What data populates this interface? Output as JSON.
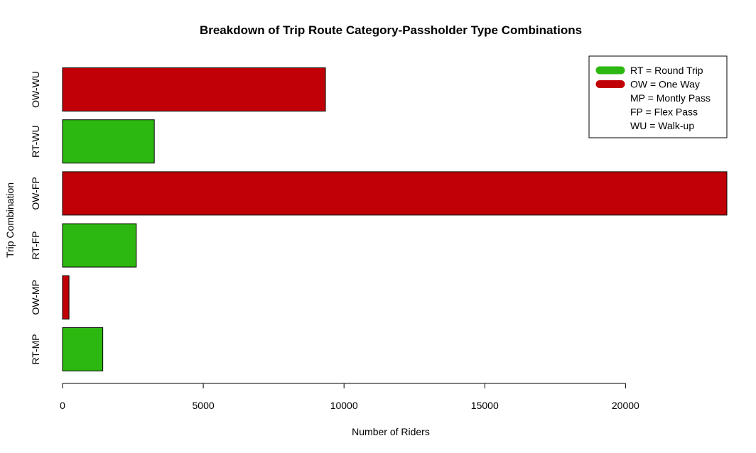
{
  "chart_data": {
    "type": "bar",
    "orientation": "horizontal",
    "title": "Breakdown of Trip Route Category-Passholder Type Combinations",
    "xlabel": "Number of Riders",
    "ylabel": "Trip Combination",
    "categories": [
      "RT-MP",
      "OW-MP",
      "RT-FP",
      "OW-FP",
      "RT-WU",
      "OW-WU"
    ],
    "values": [
      1430,
      230,
      2620,
      23600,
      3260,
      9340
    ],
    "bar_colors": [
      "#2db811",
      "#c00006",
      "#2db811",
      "#c00006",
      "#2db811",
      "#c00006"
    ],
    "xlim": [
      0,
      23600
    ],
    "xticks": [
      0,
      5000,
      10000,
      15000,
      20000
    ],
    "xtick_labels": [
      "0",
      "5000",
      "10000",
      "15000",
      "20000"
    ],
    "grid": false,
    "legend": {
      "position": "top-right",
      "entries": [
        {
          "label": "RT = Round Trip",
          "color": "#2db811"
        },
        {
          "label": "OW = One Way",
          "color": "#c00006"
        },
        {
          "label": "MP = Montly Pass",
          "color": ""
        },
        {
          "label": "FP = Flex Pass",
          "color": ""
        },
        {
          "label": "WU = Walk-up",
          "color": ""
        }
      ]
    }
  }
}
